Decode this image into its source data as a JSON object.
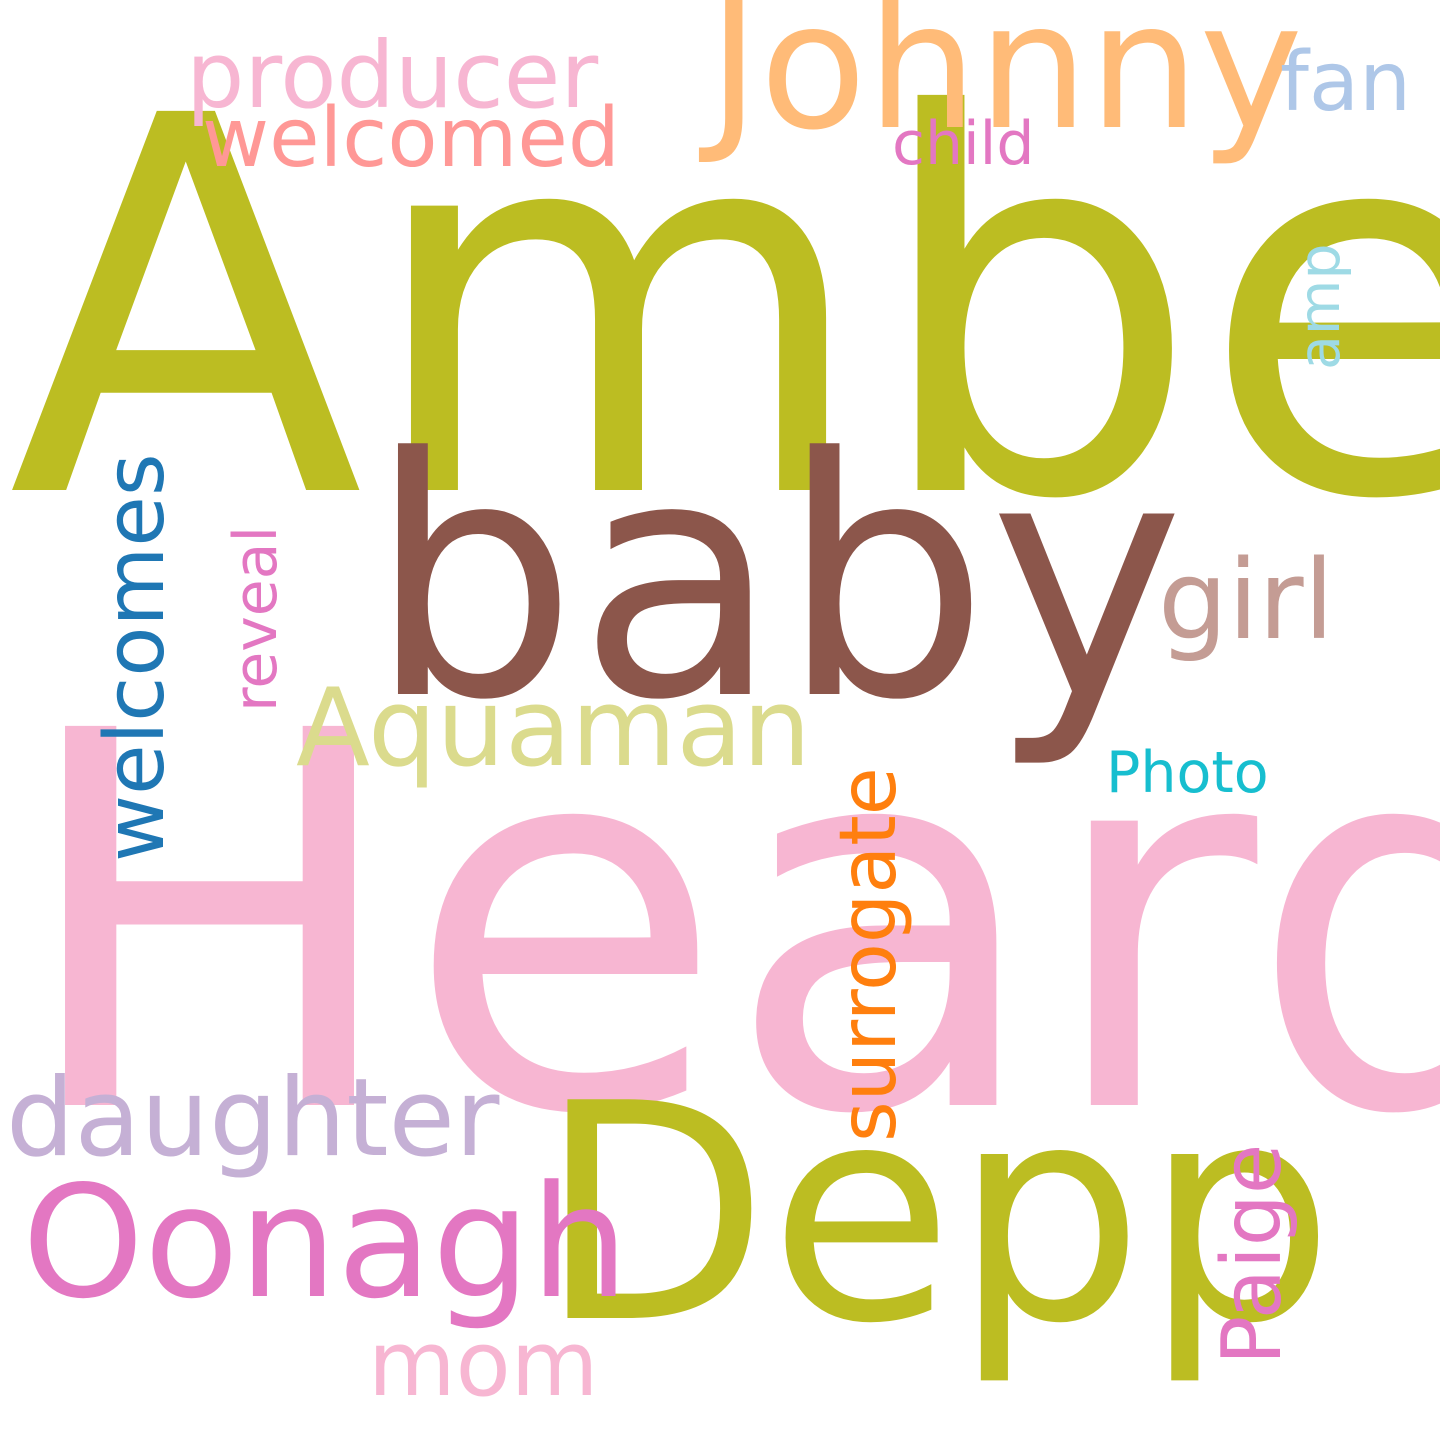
{
  "words": {
    "amber": {
      "text": "Amber",
      "color": "#bcbd22"
    },
    "heard": {
      "text": "Heard",
      "color": "#f7b6d2"
    },
    "baby": {
      "text": "baby",
      "color": "#8c564b"
    },
    "depp": {
      "text": "Depp",
      "color": "#bcbd22"
    },
    "johnny": {
      "text": "Johnny",
      "color": "#ffbb78"
    },
    "oonagh": {
      "text": "Oonagh",
      "color": "#e377c2"
    },
    "aquaman": {
      "text": "Aquaman",
      "color": "#dbdb8d"
    },
    "girl": {
      "text": "girl",
      "color": "#c49c94"
    },
    "daughter": {
      "text": "daughter",
      "color": "#c5b0d5"
    },
    "producer": {
      "text": "producer",
      "color": "#f7b6d2"
    },
    "welcomed": {
      "text": "welcomed",
      "color": "#ff9896"
    },
    "fan": {
      "text": "fan",
      "color": "#aec7e8"
    },
    "child": {
      "text": "child",
      "color": "#e377c2"
    },
    "mom": {
      "text": "mom",
      "color": "#f7b6d2"
    },
    "photo": {
      "text": "Photo",
      "color": "#17becf"
    },
    "welcomes": {
      "text": "welcomes",
      "color": "#1f77b4"
    },
    "reveal": {
      "text": "reveal",
      "color": "#e377c2"
    },
    "surrogate": {
      "text": "surrogate",
      "color": "#ff7f0e"
    },
    "paige": {
      "text": "Paige",
      "color": "#e377c2"
    },
    "amp": {
      "text": "amp",
      "color": "#9edae5"
    }
  }
}
